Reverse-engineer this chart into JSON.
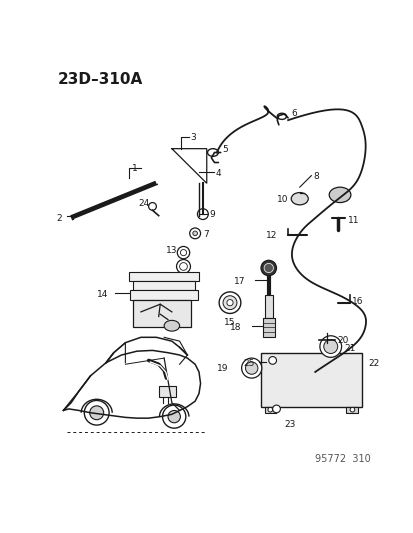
{
  "title": "23D–310A",
  "watermark": "95772  310",
  "bg": "#ffffff",
  "lc": "#1a1a1a",
  "fig_w": 4.14,
  "fig_h": 5.33,
  "dpi": 100
}
